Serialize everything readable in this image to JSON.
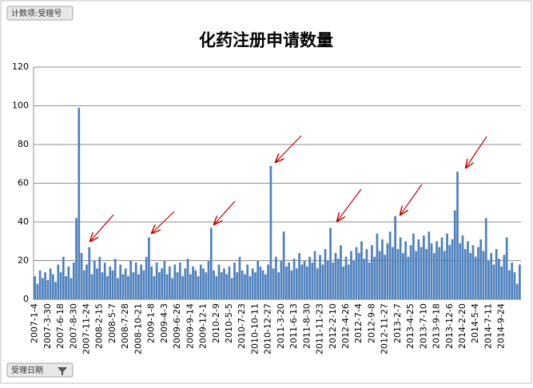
{
  "chart_data": {
    "type": "bar",
    "title": "化药注册申请数量",
    "pivot_field": "计数项:受理号",
    "axis_field": "受理日期",
    "color": "#4f81bd",
    "ylim": [
      0,
      120
    ],
    "yticks": [
      0,
      20,
      40,
      60,
      80,
      100,
      120
    ],
    "grid": true,
    "categories": [
      "2007-1-4",
      null,
      null,
      null,
      null,
      "2007-3-30",
      null,
      null,
      null,
      null,
      "2007-6-18",
      null,
      null,
      null,
      null,
      "2007-8-30",
      null,
      null,
      null,
      null,
      "2007-11-24",
      null,
      null,
      null,
      null,
      "2008-2-15",
      null,
      null,
      null,
      null,
      "2008-5-7",
      null,
      null,
      null,
      null,
      "2008-7-28",
      null,
      null,
      null,
      null,
      "2008-10-21",
      null,
      null,
      null,
      null,
      "2009-1-8",
      null,
      null,
      null,
      null,
      "2009-4-3",
      null,
      null,
      null,
      null,
      "2009-6-26",
      null,
      null,
      null,
      null,
      "2009-9-14",
      null,
      null,
      null,
      null,
      "2009-12-1",
      null,
      null,
      null,
      null,
      "2010-2-9",
      null,
      null,
      null,
      null,
      "2010-5-5",
      null,
      null,
      null,
      null,
      "2010-7-23",
      null,
      null,
      null,
      null,
      "2010-10-11",
      null,
      null,
      null,
      null,
      "2010-12-27",
      null,
      null,
      null,
      null,
      "2011-3-20",
      null,
      null,
      null,
      null,
      "2011-6-13",
      null,
      null,
      null,
      null,
      "2011-8-30",
      null,
      null,
      null,
      null,
      "2011-11-23",
      null,
      null,
      null,
      null,
      "2012-2-10",
      null,
      null,
      null,
      null,
      "2012-4-26",
      null,
      null,
      null,
      null,
      "2012-7-4",
      null,
      null,
      null,
      null,
      "2012-9-8",
      null,
      null,
      null,
      null,
      "2012-11-27",
      null,
      null,
      null,
      null,
      "2013-2-7",
      null,
      null,
      null,
      null,
      "2013-4-25",
      null,
      null,
      null,
      null,
      "2013-7-10",
      null,
      null,
      null,
      null,
      "2013-9-18",
      null,
      null,
      null,
      null,
      "2013-12-6",
      null,
      null,
      null,
      null,
      "2014-2-20",
      null,
      null,
      null,
      null,
      "2014-5-4",
      null,
      null,
      null,
      null,
      "2014-7-11",
      null,
      null,
      null,
      null,
      "2014-9-24",
      null,
      null,
      null,
      null,
      null,
      null,
      null
    ],
    "values": [
      12,
      8,
      15,
      11,
      14,
      10,
      16,
      13,
      9,
      18,
      14,
      22,
      12,
      17,
      11,
      19,
      42,
      99,
      24,
      15,
      18,
      27,
      13,
      20,
      16,
      22,
      14,
      19,
      12,
      17,
      15,
      21,
      11,
      18,
      13,
      16,
      12,
      20,
      14,
      19,
      13,
      18,
      15,
      22,
      32,
      17,
      12,
      19,
      14,
      16,
      20,
      13,
      17,
      11,
      18,
      14,
      19,
      12,
      16,
      21,
      13,
      17,
      15,
      12,
      18,
      16,
      14,
      20,
      37,
      15,
      12,
      18,
      14,
      16,
      13,
      17,
      11,
      19,
      14,
      22,
      15,
      13,
      18,
      12,
      16,
      14,
      20,
      17,
      15,
      13,
      18,
      69,
      16,
      22,
      14,
      20,
      35,
      17,
      19,
      15,
      21,
      16,
      24,
      18,
      20,
      17,
      22,
      19,
      25,
      16,
      23,
      18,
      26,
      20,
      37,
      19,
      24,
      21,
      28,
      17,
      22,
      18,
      25,
      20,
      27,
      24,
      30,
      21,
      26,
      19,
      28,
      22,
      34,
      25,
      31,
      23,
      29,
      35,
      27,
      43,
      26,
      32,
      24,
      30,
      22,
      28,
      34,
      25,
      31,
      27,
      33,
      26,
      35,
      29,
      24,
      30,
      27,
      32,
      25,
      34,
      28,
      31,
      46,
      66,
      29,
      33,
      26,
      30,
      24,
      28,
      22,
      27,
      31,
      25,
      42,
      20,
      24,
      18,
      26,
      21,
      17,
      23,
      32,
      15,
      19,
      14,
      8,
      18
    ]
  }
}
